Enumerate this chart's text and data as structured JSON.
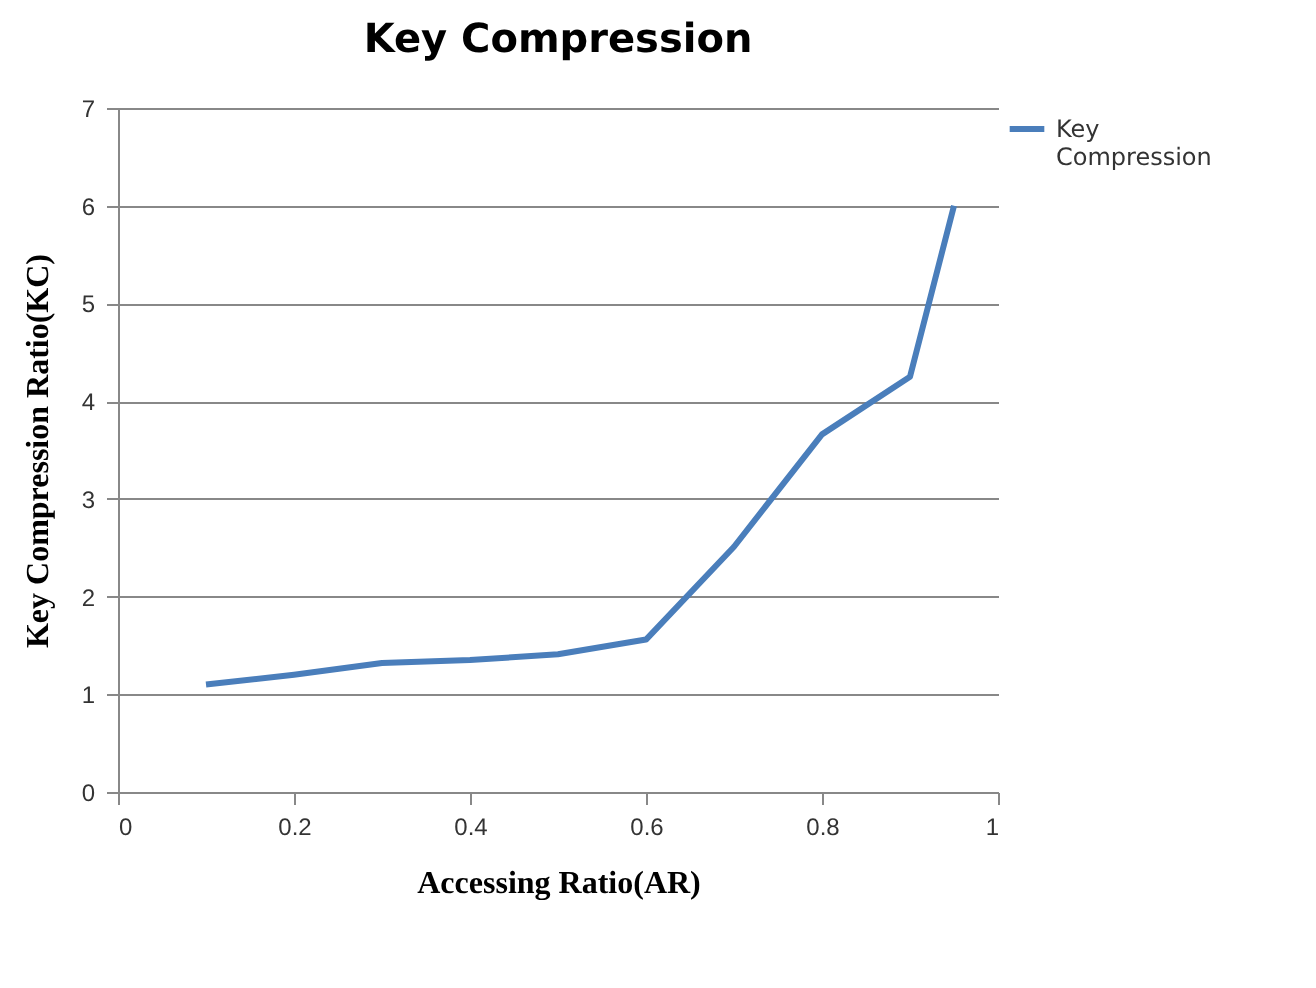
{
  "chart_data": {
    "type": "line",
    "title": "Key Compression",
    "xlabel": "Accessing Ratio(AR)",
    "ylabel": "Key Compression Ratio(KC)",
    "x": [
      0.1,
      0.2,
      0.3,
      0.4,
      0.5,
      0.6,
      0.7,
      0.8,
      0.9,
      0.95
    ],
    "series": [
      {
        "name": "Key Compression",
        "color": "#4a7ebb",
        "values": [
          1.1,
          1.2,
          1.32,
          1.35,
          1.41,
          1.56,
          2.51,
          3.66,
          4.25,
          6.0
        ]
      }
    ],
    "xlim": [
      0,
      1
    ],
    "xticks": [
      0,
      0.2,
      0.4,
      0.6,
      0.8,
      1
    ],
    "ylim": [
      0,
      7
    ],
    "yticks": [
      0,
      1,
      2,
      3,
      4,
      5,
      6,
      7
    ],
    "grid": "y",
    "legend": "right",
    "marker": "none",
    "line_style": "solid"
  }
}
